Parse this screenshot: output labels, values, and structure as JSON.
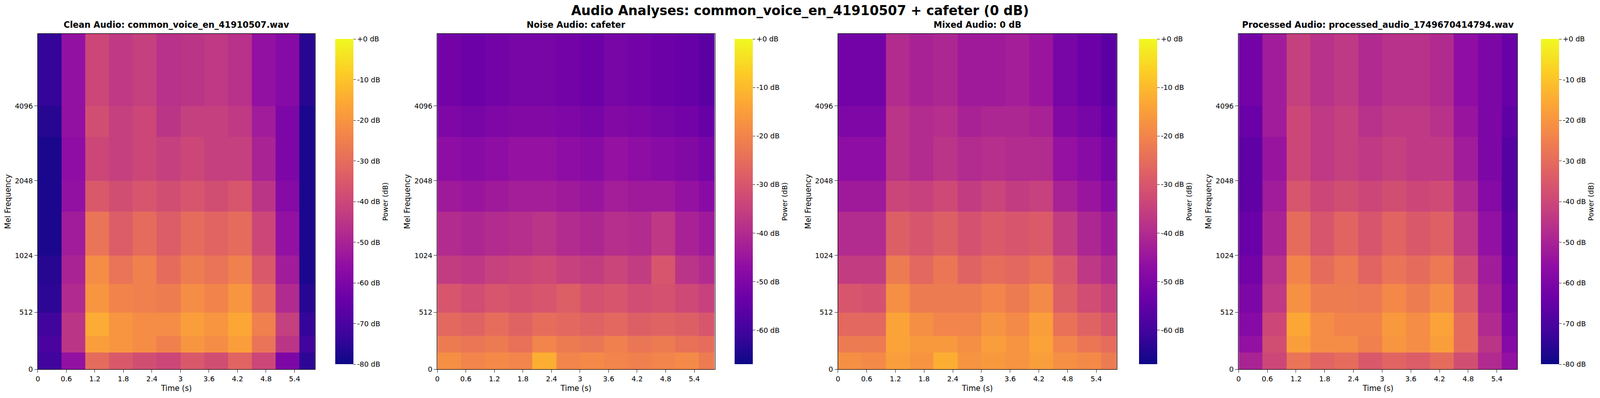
{
  "title": "Audio Analyses: common_voice_en_41910507 + cafeter (0 dB)",
  "chart_data": [
    {
      "type": "heatmap",
      "title": "Clean Audio: common_voice_en_41910507.wav",
      "x_label": "Time (s)",
      "y_label": "Mel Frequency",
      "xlim": [
        0,
        5.83
      ],
      "xticks": [
        0,
        0.6,
        1.2,
        1.8,
        2.4,
        3,
        3.6,
        4.2,
        4.8,
        5.4
      ],
      "ylim": [
        0,
        8000
      ],
      "yticks": [
        0,
        512,
        1024,
        2048,
        4096
      ],
      "time_bins": [
        0,
        0.5,
        1,
        1.5,
        2,
        2.5,
        3,
        3.5,
        4,
        4.5,
        5,
        5.5,
        5.83
      ],
      "freq_bins": [
        0,
        150,
        300,
        512,
        768,
        1024,
        1536,
        2048,
        3072,
        4096,
        8000
      ],
      "values": [
        [
          -72,
          -55,
          -30,
          -35,
          -38,
          -40,
          -35,
          -38,
          -32,
          -40,
          -60,
          -75
        ],
        [
          -70,
          -45,
          -18,
          -20,
          -22,
          -25,
          -20,
          -22,
          -18,
          -28,
          -45,
          -72
        ],
        [
          -72,
          -45,
          -15,
          -20,
          -22,
          -22,
          -18,
          -20,
          -16,
          -25,
          -42,
          -74
        ],
        [
          -75,
          -48,
          -20,
          -24,
          -25,
          -26,
          -22,
          -24,
          -20,
          -30,
          -48,
          -76
        ],
        [
          -76,
          -50,
          -22,
          -28,
          -25,
          -30,
          -26,
          -28,
          -25,
          -35,
          -52,
          -78
        ],
        [
          -78,
          -52,
          -28,
          -34,
          -30,
          -34,
          -30,
          -32,
          -30,
          -40,
          -55,
          -78
        ],
        [
          -78,
          -55,
          -35,
          -38,
          -36,
          -38,
          -36,
          -38,
          -36,
          -45,
          -58,
          -78
        ],
        [
          -78,
          -56,
          -40,
          -42,
          -40,
          -42,
          -40,
          -42,
          -42,
          -50,
          -60,
          -78
        ],
        [
          -76,
          -55,
          -38,
          -42,
          -40,
          -45,
          -42,
          -42,
          -44,
          -52,
          -60,
          -78
        ],
        [
          -74,
          -55,
          -40,
          -44,
          -42,
          -46,
          -45,
          -44,
          -46,
          -55,
          -58,
          -76
        ]
      ],
      "colorbar": {
        "label": "Power (dB)",
        "range": [
          -80,
          0
        ],
        "ticks": [
          {
            "value": 0,
            "label": "+0 dB"
          },
          {
            "value": -10,
            "label": "-10 dB"
          },
          {
            "value": -20,
            "label": "-20 dB"
          },
          {
            "value": -30,
            "label": "-30 dB"
          },
          {
            "value": -40,
            "label": "-40 dB"
          },
          {
            "value": -50,
            "label": "-50 dB"
          },
          {
            "value": -60,
            "label": "-60 dB"
          },
          {
            "value": -70,
            "label": "-70 dB"
          },
          {
            "value": -80,
            "label": "-80 dB"
          }
        ]
      }
    },
    {
      "type": "heatmap",
      "title": "Noise Audio: cafeter",
      "x_label": "Time (s)",
      "y_label": "Mel Frequency",
      "xlim": [
        0,
        5.83
      ],
      "xticks": [
        0,
        0.6,
        1.2,
        1.8,
        2.4,
        3,
        3.6,
        4.2,
        4.8,
        5.4
      ],
      "ylim": [
        0,
        8000
      ],
      "yticks": [
        0,
        512,
        1024,
        2048,
        4096
      ],
      "time_bins": [
        0,
        0.5,
        1,
        1.5,
        2,
        2.5,
        3,
        3.5,
        4,
        4.5,
        5,
        5.5,
        5.83
      ],
      "freq_bins": [
        0,
        150,
        300,
        512,
        768,
        1024,
        1536,
        2048,
        3072,
        4096,
        8000
      ],
      "values": [
        [
          -18,
          -20,
          -19,
          -20,
          -12,
          -20,
          -19,
          -20,
          -21,
          -20,
          -19,
          -22
        ],
        [
          -22,
          -23,
          -22,
          -24,
          -20,
          -22,
          -23,
          -21,
          -23,
          -22,
          -24,
          -25
        ],
        [
          -26,
          -27,
          -25,
          -27,
          -25,
          -26,
          -27,
          -26,
          -28,
          -27,
          -28,
          -30
        ],
        [
          -30,
          -32,
          -30,
          -31,
          -30,
          -28,
          -31,
          -30,
          -32,
          -31,
          -33,
          -35
        ],
        [
          -36,
          -37,
          -35,
          -34,
          -33,
          -35,
          -36,
          -34,
          -36,
          -30,
          -38,
          -40
        ],
        [
          -40,
          -41,
          -40,
          -39,
          -38,
          -40,
          -41,
          -39,
          -40,
          -37,
          -42,
          -44
        ],
        [
          -44,
          -45,
          -44,
          -43,
          -43,
          -44,
          -45,
          -43,
          -44,
          -44,
          -46,
          -48
        ],
        [
          -47,
          -48,
          -47,
          -46,
          -46,
          -47,
          -48,
          -46,
          -47,
          -48,
          -49,
          -51
        ],
        [
          -50,
          -51,
          -50,
          -49,
          -49,
          -50,
          -51,
          -49,
          -50,
          -51,
          -52,
          -54
        ],
        [
          -52,
          -53,
          -52,
          -51,
          -51,
          -52,
          -53,
          -51,
          -52,
          -53,
          -54,
          -56
        ]
      ],
      "colorbar": {
        "label": "Power (dB)",
        "range": [
          -67,
          0
        ],
        "ticks": [
          {
            "value": 0,
            "label": "+0 dB"
          },
          {
            "value": -10,
            "label": "-10 dB"
          },
          {
            "value": -20,
            "label": "-20 dB"
          },
          {
            "value": -30,
            "label": "-30 dB"
          },
          {
            "value": -40,
            "label": "-40 dB"
          },
          {
            "value": -50,
            "label": "-50 dB"
          },
          {
            "value": -60,
            "label": "-60 dB"
          }
        ]
      }
    },
    {
      "type": "heatmap",
      "title": "Mixed Audio: 0 dB",
      "x_label": "Time (s)",
      "y_label": "Mel Frequency",
      "xlim": [
        0,
        5.83
      ],
      "xticks": [
        0,
        0.6,
        1.2,
        1.8,
        2.4,
        3,
        3.6,
        4.2,
        4.8,
        5.4
      ],
      "ylim": [
        0,
        8000
      ],
      "yticks": [
        0,
        512,
        1024,
        2048,
        4096
      ],
      "time_bins": [
        0,
        0.5,
        1,
        1.5,
        2,
        2.5,
        3,
        3.5,
        4,
        4.5,
        5,
        5.5,
        5.83
      ],
      "freq_bins": [
        0,
        150,
        300,
        512,
        768,
        1024,
        1536,
        2048,
        3072,
        4096,
        8000
      ],
      "values": [
        [
          -18,
          -19,
          -15,
          -17,
          -12,
          -17,
          -16,
          -17,
          -15,
          -18,
          -19,
          -22
        ],
        [
          -22,
          -22,
          -14,
          -16,
          -16,
          -18,
          -15,
          -17,
          -14,
          -20,
          -23,
          -25
        ],
        [
          -26,
          -26,
          -14,
          -18,
          -20,
          -20,
          -17,
          -19,
          -15,
          -24,
          -27,
          -30
        ],
        [
          -30,
          -31,
          -18,
          -22,
          -22,
          -22,
          -20,
          -22,
          -19,
          -28,
          -32,
          -35
        ],
        [
          -36,
          -36,
          -22,
          -26,
          -23,
          -27,
          -25,
          -26,
          -24,
          -30,
          -37,
          -40
        ],
        [
          -40,
          -40,
          -28,
          -30,
          -28,
          -31,
          -29,
          -30,
          -29,
          -36,
          -41,
          -44
        ],
        [
          -44,
          -44,
          -34,
          -35,
          -33,
          -36,
          -34,
          -36,
          -35,
          -42,
          -45,
          -48
        ],
        [
          -47,
          -47,
          -38,
          -40,
          -38,
          -40,
          -39,
          -40,
          -40,
          -46,
          -48,
          -51
        ],
        [
          -50,
          -50,
          -38,
          -40,
          -39,
          -42,
          -41,
          -41,
          -42,
          -49,
          -51,
          -54
        ],
        [
          -52,
          -52,
          -40,
          -42,
          -41,
          -44,
          -44,
          -43,
          -45,
          -51,
          -53,
          -56
        ]
      ],
      "colorbar": {
        "label": "Power (dB)",
        "range": [
          -67,
          0
        ],
        "ticks": [
          {
            "value": 0,
            "label": "+0 dB"
          },
          {
            "value": -10,
            "label": "-10 dB"
          },
          {
            "value": -20,
            "label": "-20 dB"
          },
          {
            "value": -30,
            "label": "-30 dB"
          },
          {
            "value": -40,
            "label": "-40 dB"
          },
          {
            "value": -50,
            "label": "-50 dB"
          },
          {
            "value": -60,
            "label": "-60 dB"
          }
        ]
      }
    },
    {
      "type": "heatmap",
      "title": "Processed Audio: processed_audio_1749670414794.wav",
      "x_label": "Time (s)",
      "y_label": "Mel Frequency",
      "xlim": [
        0,
        5.83
      ],
      "xticks": [
        0,
        0.6,
        1.2,
        1.8,
        2.4,
        3,
        3.6,
        4.2,
        4.8,
        5.4
      ],
      "ylim": [
        0,
        8000
      ],
      "yticks": [
        0,
        512,
        1024,
        2048,
        4096
      ],
      "time_bins": [
        0,
        0.5,
        1,
        1.5,
        2,
        2.5,
        3,
        3.5,
        4,
        4.5,
        5,
        5.5,
        5.83
      ],
      "freq_bins": [
        0,
        150,
        300,
        512,
        768,
        1024,
        1536,
        2048,
        3072,
        4096,
        8000
      ],
      "values": [
        [
          -50,
          -40,
          -28,
          -32,
          -30,
          -35,
          -32,
          -34,
          -30,
          -38,
          -48,
          -55
        ],
        [
          -55,
          -38,
          -18,
          -22,
          -22,
          -25,
          -20,
          -22,
          -18,
          -30,
          -45,
          -58
        ],
        [
          -58,
          -40,
          -16,
          -22,
          -24,
          -24,
          -19,
          -22,
          -17,
          -30,
          -48,
          -60
        ],
        [
          -60,
          -44,
          -21,
          -26,
          -26,
          -27,
          -23,
          -26,
          -22,
          -34,
          -50,
          -62
        ],
        [
          -62,
          -46,
          -24,
          -30,
          -27,
          -32,
          -28,
          -30,
          -27,
          -38,
          -52,
          -64
        ],
        [
          -64,
          -50,
          -30,
          -36,
          -32,
          -36,
          -32,
          -35,
          -33,
          -44,
          -55,
          -66
        ],
        [
          -66,
          -52,
          -36,
          -40,
          -38,
          -40,
          -38,
          -40,
          -39,
          -48,
          -58,
          -68
        ],
        [
          -66,
          -54,
          -40,
          -44,
          -42,
          -44,
          -42,
          -44,
          -44,
          -52,
          -60,
          -68
        ],
        [
          -64,
          -52,
          -40,
          -44,
          -42,
          -46,
          -44,
          -44,
          -46,
          -54,
          -60,
          -66
        ],
        [
          -62,
          -52,
          -42,
          -46,
          -44,
          -48,
          -46,
          -46,
          -48,
          -56,
          -60,
          -64
        ]
      ],
      "colorbar": {
        "label": "Power (dB)",
        "range": [
          -80,
          0
        ],
        "ticks": [
          {
            "value": 0,
            "label": "+0 dB"
          },
          {
            "value": -10,
            "label": "-10 dB"
          },
          {
            "value": -20,
            "label": "-20 dB"
          },
          {
            "value": -30,
            "label": "-30 dB"
          },
          {
            "value": -40,
            "label": "-40 dB"
          },
          {
            "value": -50,
            "label": "-50 dB"
          },
          {
            "value": -60,
            "label": "-60 dB"
          },
          {
            "value": -70,
            "label": "-70 dB"
          },
          {
            "value": -80,
            "label": "-80 dB"
          }
        ]
      }
    }
  ]
}
